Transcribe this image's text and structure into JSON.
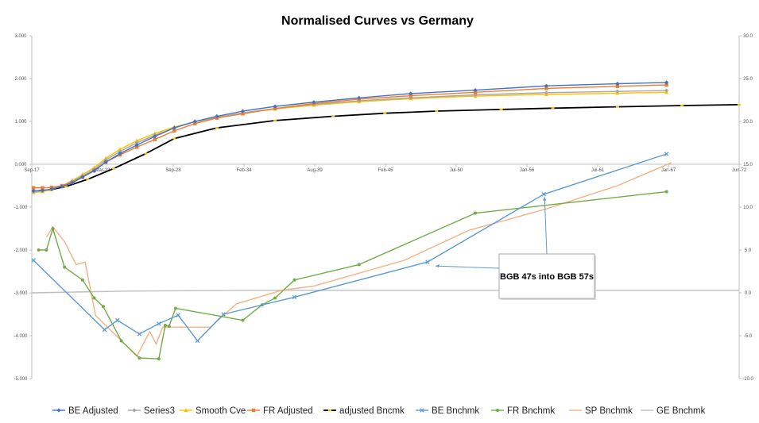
{
  "chart_data": {
    "type": "line",
    "title": "Normalised Curves vs Germany",
    "y_left": {
      "ticks": [
        "3.000",
        "2.000",
        "1.000",
        "0.000",
        "-1.000",
        "-2.000",
        "-3.000",
        "-4.000",
        "-5.000"
      ],
      "ylim": [
        -5,
        3
      ]
    },
    "y_right": {
      "ticks": [
        "30.0",
        "25.0",
        "20.0",
        "15.0",
        "10.0",
        "5.0",
        "0.0",
        "-5.0",
        "-10.0"
      ],
      "ylim": [
        -10,
        30
      ]
    },
    "x_axis": {
      "ticks": [
        "Sep-17",
        "Mar-23",
        "Sep-28",
        "Feb-34",
        "Aug-39",
        "Feb-45",
        "Jul-50",
        "Jan-56",
        "Jul-61",
        "Jan-67",
        "Jun-72"
      ],
      "xlim": [
        2017.67,
        2072.42
      ],
      "crosses_left_y_at": 0
    },
    "series": [
      {
        "name": "BE Adjusted",
        "axis": "left",
        "color": "#4472C4",
        "marker": "diamond",
        "x": [
          2017.8,
          2018.5,
          2019.2,
          2020.0,
          2020.8,
          2021.6,
          2022.5,
          2023.4,
          2024.5,
          2025.8,
          2027.2,
          2028.7,
          2030.3,
          2032.0,
          2034.0,
          2036.5,
          2039.5,
          2043.0,
          2047.0,
          2052.0,
          2057.5,
          2063.0,
          2066.8
        ],
        "y": [
          -0.62,
          -0.61,
          -0.58,
          -0.52,
          -0.43,
          -0.3,
          -0.15,
          0.05,
          0.25,
          0.45,
          0.65,
          0.85,
          1.0,
          1.12,
          1.24,
          1.35,
          1.45,
          1.55,
          1.65,
          1.73,
          1.83,
          1.88,
          1.91
        ]
      },
      {
        "name": "Series3",
        "axis": "left",
        "color": "#A5A5A5",
        "marker": "diamond",
        "x": [
          2017.8,
          2018.5,
          2019.2,
          2020.0,
          2020.8,
          2021.6,
          2022.5,
          2023.4,
          2024.5,
          2025.8,
          2027.2,
          2028.7,
          2030.3,
          2032.0,
          2034.0,
          2036.5,
          2039.5,
          2043.0,
          2047.0,
          2052.0,
          2057.5,
          2063.0,
          2066.8
        ],
        "y": [
          -0.64,
          -0.62,
          -0.58,
          -0.5,
          -0.4,
          -0.27,
          -0.12,
          0.1,
          0.3,
          0.5,
          0.68,
          0.85,
          0.99,
          1.1,
          1.2,
          1.3,
          1.4,
          1.48,
          1.55,
          1.62,
          1.67,
          1.7,
          1.72
        ]
      },
      {
        "name": "Smooth Cve",
        "axis": "left",
        "color": "#FFC000",
        "marker": "triangle",
        "x": [
          2017.8,
          2018.5,
          2019.2,
          2020.0,
          2020.8,
          2021.6,
          2022.5,
          2023.4,
          2024.5,
          2025.8,
          2027.2,
          2028.7,
          2030.3,
          2032.0,
          2034.0,
          2036.5,
          2039.5,
          2043.0,
          2047.0,
          2052.0,
          2057.5,
          2063.0,
          2066.8
        ],
        "y": [
          -0.66,
          -0.64,
          -0.59,
          -0.5,
          -0.38,
          -0.24,
          -0.08,
          0.14,
          0.35,
          0.55,
          0.72,
          0.87,
          0.99,
          1.09,
          1.19,
          1.29,
          1.38,
          1.46,
          1.53,
          1.59,
          1.63,
          1.66,
          1.68
        ]
      },
      {
        "name": "FR Adjusted",
        "axis": "left",
        "color": "#ED7D31",
        "marker": "square",
        "x": [
          2017.8,
          2018.5,
          2019.2,
          2020.0,
          2020.8,
          2021.6,
          2022.5,
          2023.4,
          2024.5,
          2025.8,
          2027.2,
          2028.7,
          2030.3,
          2032.0,
          2034.0,
          2036.5,
          2039.5,
          2043.0,
          2047.0,
          2052.0,
          2057.5,
          2063.0,
          2066.8
        ],
        "y": [
          -0.55,
          -0.55,
          -0.54,
          -0.5,
          -0.42,
          -0.3,
          -0.15,
          0.05,
          0.22,
          0.4,
          0.58,
          0.78,
          0.95,
          1.08,
          1.18,
          1.3,
          1.42,
          1.52,
          1.6,
          1.68,
          1.77,
          1.82,
          1.85
        ]
      },
      {
        "name": "adjusted Bncmk",
        "axis": "left",
        "color": "#000000",
        "marker": "dash-yellow",
        "x": [
          2018.0,
          2019.0,
          2020.3,
          2022.0,
          2024.0,
          2026.5,
          2028.7,
          2032.0,
          2036.5,
          2041.0,
          2045.0,
          2049.0,
          2054.0,
          2058.0,
          2063.0,
          2068.0,
          2072.42
        ],
        "y": [
          -0.62,
          -0.6,
          -0.52,
          -0.35,
          -0.1,
          0.25,
          0.6,
          0.85,
          1.02,
          1.12,
          1.19,
          1.24,
          1.28,
          1.31,
          1.34,
          1.37,
          1.39
        ]
      },
      {
        "name": "BE  Bnchmk",
        "axis": "right",
        "color": "#5B9BD5",
        "marker": "x",
        "x": [
          2017.8,
          2023.3,
          2024.3,
          2026.0,
          2027.5,
          2029.0,
          2030.5,
          2032.5,
          2038.0,
          2048.3,
          2057.3,
          2066.8
        ],
        "y": [
          3.8,
          -4.3,
          -3.2,
          -4.8,
          -3.6,
          -2.6,
          -5.6,
          -2.5,
          -0.5,
          3.6,
          11.5,
          16.2
        ]
      },
      {
        "name": "FR  Bnchmk",
        "axis": "right",
        "color": "#70AD47",
        "marker": "circle",
        "x": [
          2018.2,
          2018.8,
          2019.3,
          2020.2,
          2021.6,
          2022.5,
          2023.2,
          2024.6,
          2026.0,
          2027.5,
          2028.0,
          2028.3,
          2028.8,
          2034.0,
          2035.5,
          2036.5,
          2038.0,
          2043.0,
          2052.0,
          2066.8
        ],
        "y": [
          5.0,
          5.0,
          7.5,
          3.0,
          1.5,
          -0.6,
          -1.6,
          -5.6,
          -7.6,
          -7.7,
          -3.8,
          -3.9,
          -1.8,
          -3.2,
          -1.4,
          -0.6,
          1.5,
          3.3,
          9.3,
          11.8
        ],
        "x_note": "positions estimated from picture"
      },
      {
        "name": "SP  Bnchmk",
        "axis": "right",
        "color": "#F4B183",
        "marker": "none",
        "x": [
          2018.8,
          2019.3,
          2020.2,
          2021.1,
          2021.8,
          2022.6,
          2025.8,
          2026.8,
          2027.3,
          2027.8,
          2029.0,
          2031.5,
          2033.5,
          2037.0,
          2039.5,
          2046.5,
          2051.5,
          2057.5,
          2063.0,
          2067.2
        ],
        "y": [
          6.5,
          7.7,
          6.0,
          3.3,
          3.6,
          -2.6,
          -7.4,
          -4.5,
          -6.0,
          -4.0,
          -4.0,
          -4.0,
          -1.3,
          0.3,
          0.8,
          3.8,
          7.3,
          9.8,
          12.5,
          15.2
        ]
      },
      {
        "name": "GE  Bnchmk",
        "axis": "right",
        "color": "#BFBFBF",
        "marker": "none",
        "x": [
          2017.67,
          2025.0,
          2035.0,
          2045.0,
          2055.0,
          2065.0,
          2072.42
        ],
        "y": [
          0.0,
          0.2,
          0.3,
          0.3,
          0.3,
          0.3,
          0.3
        ]
      }
    ],
    "annotation": {
      "text": "BGB 47s into BGB 57s"
    },
    "legend": {
      "position": "bottom"
    },
    "grid": false
  }
}
